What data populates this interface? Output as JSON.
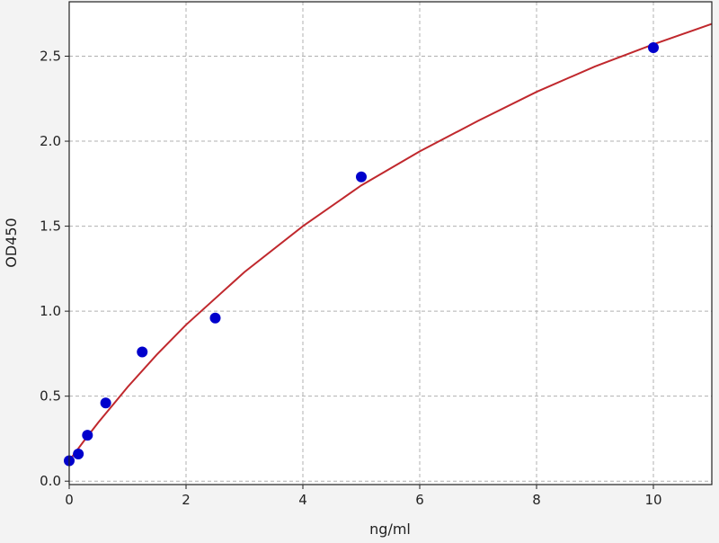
{
  "chart_data": {
    "type": "scatter",
    "title": "",
    "xlabel": "ng/ml",
    "ylabel": "OD450",
    "xlim": [
      0,
      11
    ],
    "ylim": [
      -0.02,
      2.82
    ],
    "xticks": [
      0,
      2,
      4,
      6,
      8,
      10
    ],
    "xtick_labels": [
      "0",
      "2",
      "4",
      "6",
      "8",
      "10"
    ],
    "yticks": [
      0.0,
      0.5,
      1.0,
      1.5,
      2.0,
      2.5
    ],
    "ytick_labels": [
      "0.0",
      "0.5",
      "1.0",
      "1.5",
      "2.0",
      "2.5"
    ],
    "grid": true,
    "points": {
      "x": [
        0,
        0.156,
        0.3125,
        0.625,
        1.25,
        2.5,
        5,
        10
      ],
      "y": [
        0.12,
        0.16,
        0.27,
        0.46,
        0.76,
        0.96,
        1.79,
        2.55
      ],
      "color": "#0000cc"
    },
    "fit_curve": {
      "x": [
        0,
        0.25,
        0.5,
        1,
        1.5,
        2,
        3,
        4,
        5,
        6,
        7,
        8,
        9,
        10,
        11
      ],
      "y": [
        0.12,
        0.236,
        0.346,
        0.554,
        0.745,
        0.92,
        1.23,
        1.5,
        1.74,
        1.94,
        2.12,
        2.29,
        2.44,
        2.57,
        2.69
      ],
      "color": "#c0282d"
    },
    "plot_background": "#ffffff",
    "page_background": "#f3f3f3"
  }
}
